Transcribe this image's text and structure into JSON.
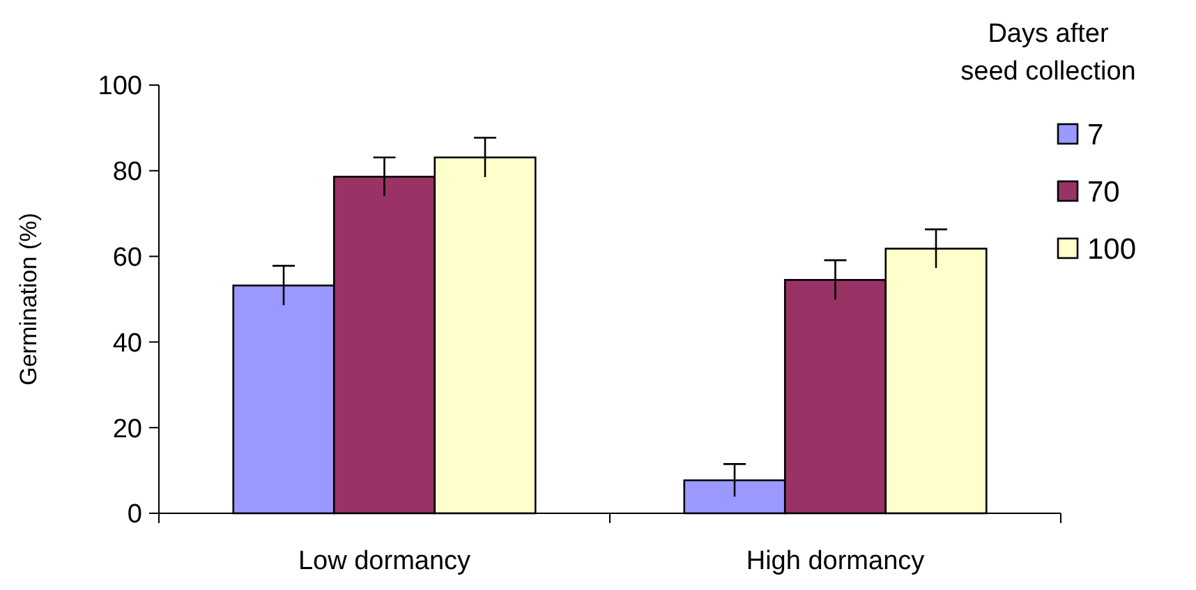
{
  "chart_data": {
    "type": "bar",
    "ylabel": "Germination (%)",
    "legend_title": "Days after\nseed collection",
    "categories": [
      "Low dormancy",
      "High dormancy"
    ],
    "series": [
      {
        "name": "7",
        "color": "#9999ff",
        "values": [
          53.2,
          7.7
        ],
        "errors": [
          4.6,
          3.8
        ]
      },
      {
        "name": "70",
        "color": "#993366",
        "values": [
          78.6,
          54.5
        ],
        "errors": [
          4.5,
          4.6
        ]
      },
      {
        "name": "100",
        "color": "#ffffcc",
        "values": [
          83.1,
          61.8
        ],
        "errors": [
          4.6,
          4.5
        ]
      }
    ],
    "ylim": [
      0,
      100
    ],
    "yticks": [
      0,
      20,
      40,
      60,
      80,
      100
    ],
    "legend": "top right"
  }
}
